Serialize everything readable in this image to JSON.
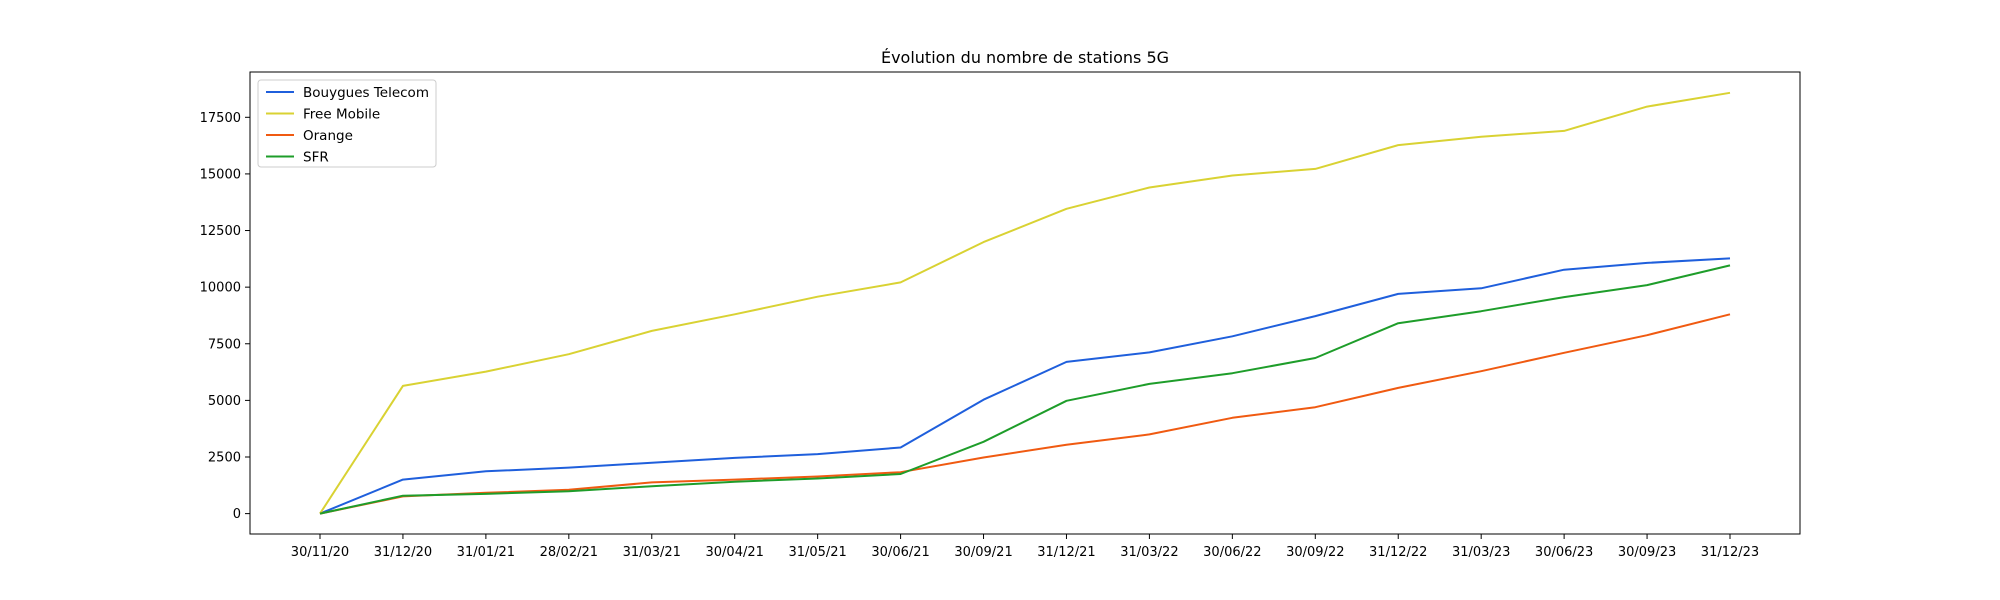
{
  "chart_data": {
    "type": "line",
    "title": "Évolution du nombre de stations 5G",
    "xlabel": "",
    "ylabel": "",
    "categories": [
      "30/11/20",
      "31/12/20",
      "31/01/21",
      "28/02/21",
      "31/03/21",
      "30/04/21",
      "31/05/21",
      "30/06/21",
      "30/09/21",
      "31/12/21",
      "31/03/22",
      "30/06/22",
      "30/09/22",
      "31/12/22",
      "31/03/23",
      "30/06/23",
      "30/09/23",
      "31/12/23"
    ],
    "ylim": [
      -900,
      19500
    ],
    "yticks": [
      0,
      2500,
      5000,
      7500,
      10000,
      12500,
      15000,
      17500
    ],
    "grid": false,
    "legend_position": "top-left",
    "series": [
      {
        "name": "Bouygues Telecom",
        "color": "#1f5fdc",
        "values": [
          0,
          1500,
          1870,
          2030,
          2250,
          2460,
          2630,
          2920,
          5030,
          6700,
          7120,
          7830,
          8720,
          9700,
          9950,
          10770,
          11070,
          11270
        ]
      },
      {
        "name": "Free Mobile",
        "color": "#d9d233",
        "values": [
          0,
          5640,
          6270,
          7040,
          8070,
          8800,
          9580,
          10210,
          11990,
          13460,
          14400,
          14930,
          15220,
          16270,
          16640,
          16900,
          17970,
          18580
        ]
      },
      {
        "name": "Orange",
        "color": "#f05a11",
        "values": [
          0,
          760,
          920,
          1050,
          1380,
          1500,
          1640,
          1830,
          2480,
          3040,
          3500,
          4230,
          4700,
          5550,
          6290,
          7100,
          7880,
          8800
        ]
      },
      {
        "name": "SFR",
        "color": "#1e9d2a",
        "values": [
          0,
          790,
          870,
          990,
          1210,
          1410,
          1550,
          1750,
          3170,
          4980,
          5730,
          6200,
          6870,
          8410,
          8940,
          9560,
          10090,
          10960
        ]
      }
    ]
  }
}
